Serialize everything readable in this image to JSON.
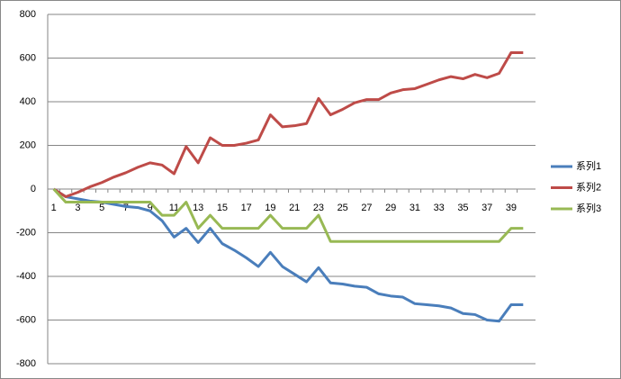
{
  "chart_data": {
    "type": "line",
    "categories": [
      1,
      null,
      3,
      null,
      5,
      null,
      7,
      null,
      9,
      null,
      11,
      null,
      13,
      null,
      15,
      null,
      17,
      null,
      19,
      null,
      21,
      null,
      23,
      null,
      25,
      null,
      27,
      null,
      29,
      null,
      31,
      null,
      33,
      null,
      35,
      null,
      37,
      null,
      39,
      null
    ],
    "series": [
      {
        "name": "系列1",
        "color": "#4a7ebb",
        "values": [
          0,
          -35,
          -45,
          -55,
          -60,
          -70,
          -80,
          -85,
          -100,
          -145,
          -220,
          -180,
          -245,
          -180,
          -250,
          -280,
          -315,
          -355,
          -290,
          -355,
          -390,
          -425,
          -360,
          -430,
          -435,
          -445,
          -450,
          -480,
          -490,
          -495,
          -525,
          -530,
          -535,
          -545,
          -570,
          -575,
          -600,
          -605,
          -530,
          -530
        ]
      },
      {
        "name": "系列2",
        "color": "#be4b48",
        "values": [
          0,
          -35,
          -15,
          10,
          30,
          55,
          75,
          100,
          120,
          110,
          70,
          195,
          120,
          235,
          200,
          200,
          210,
          225,
          340,
          285,
          290,
          300,
          415,
          340,
          365,
          395,
          410,
          410,
          440,
          455,
          460,
          480,
          500,
          515,
          505,
          525,
          510,
          530,
          625,
          625
        ]
      },
      {
        "name": "系列3",
        "color": "#98b954",
        "values": [
          0,
          -60,
          -60,
          -60,
          -60,
          -60,
          -60,
          -60,
          -60,
          -120,
          -120,
          -60,
          -180,
          -120,
          -180,
          -180,
          -180,
          -180,
          -120,
          -180,
          -180,
          -180,
          -120,
          -240,
          -240,
          -240,
          -240,
          -240,
          -240,
          -240,
          -240,
          -240,
          -240,
          -240,
          -240,
          -240,
          -240,
          -240,
          -180,
          -180
        ]
      }
    ],
    "ylim": [
      -800,
      800
    ],
    "yticks": [
      -800,
      -600,
      -400,
      -200,
      0,
      200,
      400,
      600,
      800
    ],
    "grid": true,
    "legend": "right"
  }
}
